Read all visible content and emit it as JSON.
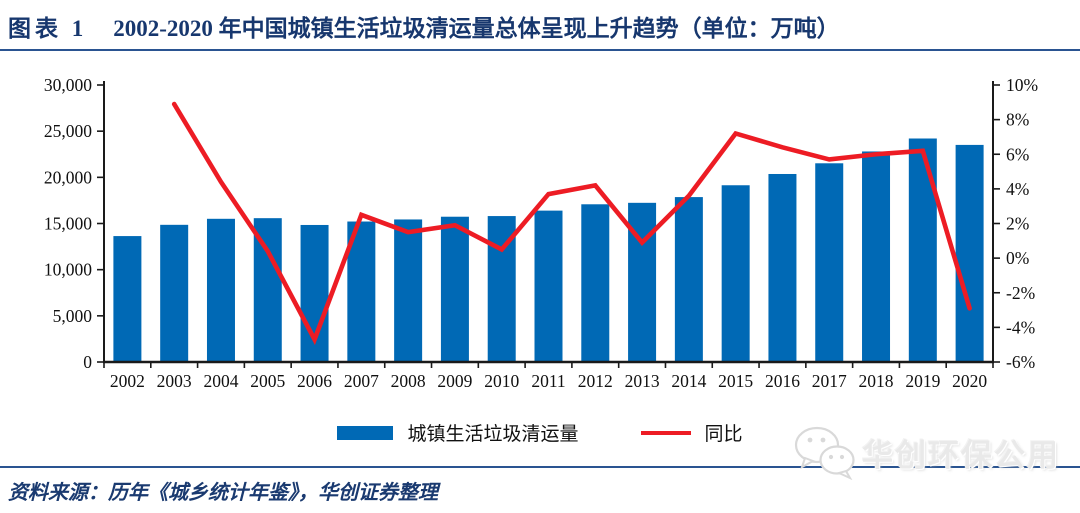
{
  "header": {
    "figure_label": "图表 1",
    "title": "2002-2020 年中国城镇生活垃圾清运量总体呈现上升趋势（单位：万吨）"
  },
  "footer": {
    "source": "资料来源：历年《城乡统计年鉴》，华创证券整理",
    "watermark": "华创环保公用"
  },
  "colors": {
    "bar": "#0069b5",
    "line": "#ed1c24",
    "accent_navy": "#2a5491",
    "title_navy": "#17376e",
    "axis_black": "#1a1a1a"
  },
  "chart_data": {
    "type": "bar",
    "combo": "bar+line",
    "categories": [
      "2002",
      "2003",
      "2004",
      "2005",
      "2006",
      "2007",
      "2008",
      "2009",
      "2010",
      "2011",
      "2012",
      "2013",
      "2014",
      "2015",
      "2016",
      "2017",
      "2018",
      "2019",
      "2020"
    ],
    "series": [
      {
        "name": "城镇生活垃圾清运量",
        "kind": "bar",
        "axis": "left",
        "color": "#0069b5",
        "values": [
          13638,
          14857,
          15509,
          15577,
          14841,
          15215,
          15438,
          15734,
          15805,
          16395,
          17081,
          17239,
          17860,
          19142,
          20362,
          21521,
          22802,
          24206,
          23512
        ]
      },
      {
        "name": "同比",
        "kind": "line",
        "axis": "right",
        "color": "#ed1c24",
        "values": [
          null,
          8.9,
          4.4,
          0.4,
          -4.7,
          2.5,
          1.5,
          1.9,
          0.5,
          3.7,
          4.2,
          0.9,
          3.6,
          7.2,
          6.4,
          5.7,
          6.0,
          6.2,
          -2.9
        ]
      }
    ],
    "left_axis": {
      "min": 0,
      "max": 30000,
      "step": 5000,
      "tick_labels": [
        "0",
        "5,000",
        "10,000",
        "15,000",
        "20,000",
        "25,000",
        "30,000"
      ]
    },
    "right_axis": {
      "min": -6,
      "max": 10,
      "step": 2,
      "suffix": "%",
      "tick_labels": [
        "-6%",
        "-4%",
        "-2%",
        "0%",
        "2%",
        "4%",
        "6%",
        "8%",
        "10%"
      ]
    },
    "legend": [
      "城镇生活垃圾清运量",
      "同比"
    ],
    "legend_position": "bottom",
    "grid": false,
    "title": "2002-2020 年中国城镇生活垃圾清运量总体呈现上升趋势（单位：万吨）",
    "ylabel_left_unit": "万吨",
    "ylabel_right_unit": "%"
  }
}
